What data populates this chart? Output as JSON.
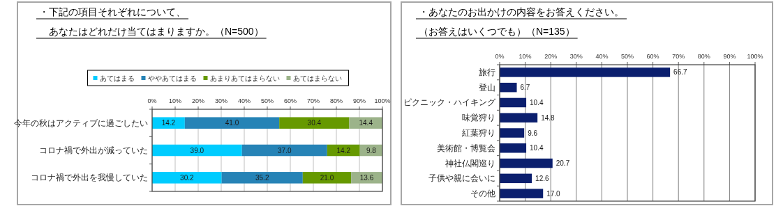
{
  "chart_data": [
    {
      "type": "bar",
      "orientation": "horizontal",
      "stacked": true,
      "title": "・下記の項目それぞれについて、",
      "subtitle": "　あなたはどれだけ当てはまりますか。（N=500）",
      "categories": [
        "今年の秋はアクティブに過ごしたい",
        "コロナ禍で外出が減っていた",
        "コロナ禍で外出を我慢していた"
      ],
      "series": [
        {
          "name": "あてはまる",
          "color": "#00ccff",
          "values": [
            14.2,
            39.0,
            30.2
          ],
          "value_labels": [
            "14.2",
            "39.0",
            "30.2"
          ]
        },
        {
          "name": "ややあてはまる",
          "color": "#2683b6",
          "values": [
            41.0,
            37.0,
            35.2
          ],
          "value_labels": [
            "41.0",
            "37.0",
            "35.2"
          ]
        },
        {
          "name": "あまりあてはまらない",
          "color": "#669900",
          "values": [
            30.4,
            14.2,
            21.0
          ],
          "value_labels": [
            "30.4",
            "14.2",
            "21.0"
          ]
        },
        {
          "name": "あてはまらない",
          "color": "#9cb38a",
          "values": [
            14.4,
            9.8,
            13.6
          ],
          "value_labels": [
            "14.4",
            "9.8",
            "13.6"
          ]
        }
      ],
      "xlim": [
        0,
        100
      ],
      "xticks": [
        {
          "value": 0,
          "label": "0%"
        },
        {
          "value": 10,
          "label": "10%"
        },
        {
          "value": 20,
          "label": "20%"
        },
        {
          "value": 30,
          "label": "30%"
        },
        {
          "value": 40,
          "label": "40%"
        },
        {
          "value": 50,
          "label": "50%"
        },
        {
          "value": 60,
          "label": "60%"
        },
        {
          "value": 70,
          "label": "70%"
        },
        {
          "value": 80,
          "label": "80%"
        },
        {
          "value": 90,
          "label": "90%"
        },
        {
          "value": 100,
          "label": "100%"
        }
      ],
      "grid": "x",
      "legend": "top"
    },
    {
      "type": "bar",
      "orientation": "horizontal",
      "title": "・あなたのお出かけの内容をお答えください。",
      "subtitle": "（お答えはいくつでも）（N=135）",
      "categories": [
        "旅行",
        "登山",
        "ピクニック・ハイキング",
        "味覚狩り",
        "紅葉狩り",
        "美術館・博覧会",
        "神社仏閣巡り",
        "子供や親に会いに",
        "その他"
      ],
      "color": "#0b1f6e",
      "values": [
        66.7,
        6.7,
        10.4,
        14.8,
        9.6,
        10.4,
        20.7,
        12.6,
        17.0
      ],
      "value_labels": [
        "66.7",
        "6.7",
        "10.4",
        "14.8",
        "9.6",
        "10.4",
        "20.7",
        "12.6",
        "17.0"
      ],
      "xlim": [
        0,
        100
      ],
      "xticks": [
        {
          "value": 0,
          "label": "0%"
        },
        {
          "value": 10,
          "label": "10%"
        },
        {
          "value": 20,
          "label": "20%"
        },
        {
          "value": 30,
          "label": "30%"
        },
        {
          "value": 40,
          "label": "40%"
        },
        {
          "value": 50,
          "label": "50%"
        },
        {
          "value": 60,
          "label": "60%"
        },
        {
          "value": 70,
          "label": "70%"
        },
        {
          "value": 80,
          "label": "80%"
        },
        {
          "value": 90,
          "label": "90%"
        },
        {
          "value": 100,
          "label": "100%"
        }
      ],
      "grid": "x"
    }
  ]
}
